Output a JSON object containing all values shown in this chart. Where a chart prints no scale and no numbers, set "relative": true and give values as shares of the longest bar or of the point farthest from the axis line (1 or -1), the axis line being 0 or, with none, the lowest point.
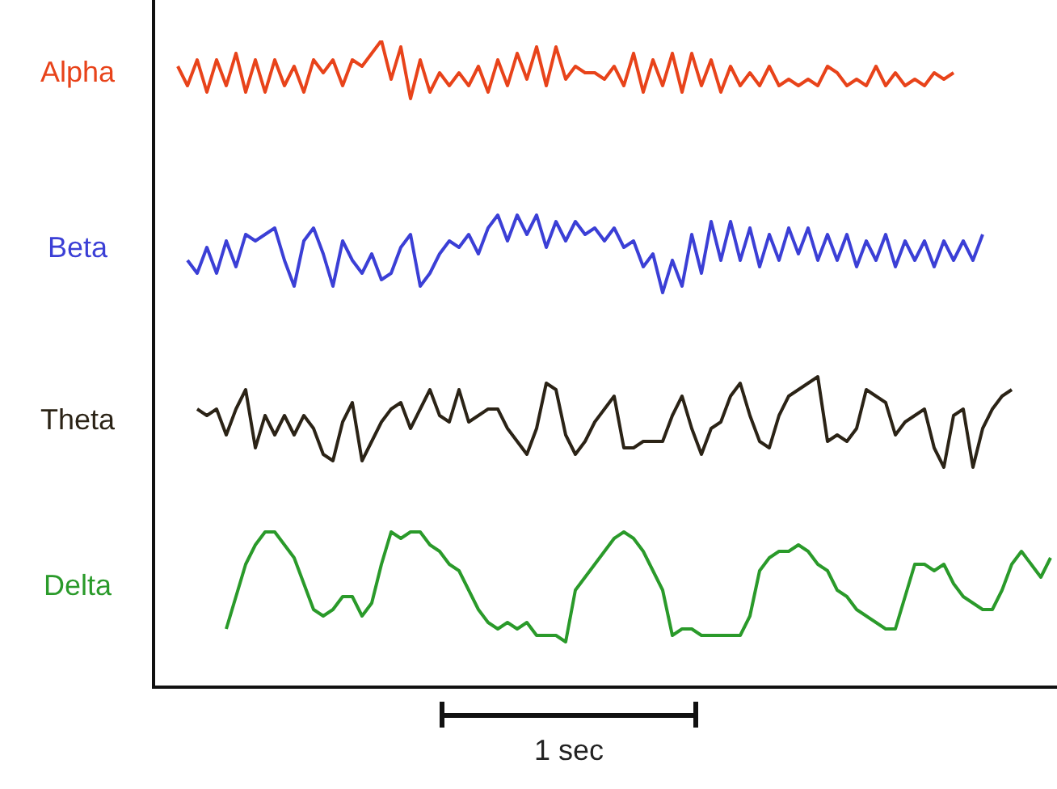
{
  "chart_data": {
    "type": "line",
    "relative": true,
    "categories": [
      null,
      null,
      null,
      null,
      null,
      null,
      null,
      null,
      null,
      null,
      null,
      null,
      null,
      null,
      null,
      null,
      null,
      null,
      null,
      null,
      null,
      null,
      null,
      null,
      null,
      null,
      null,
      null,
      null,
      null,
      null,
      null,
      null,
      null,
      null,
      null,
      null,
      null,
      null,
      null,
      null,
      null,
      null,
      null,
      null,
      null,
      null,
      null,
      null,
      null,
      null,
      null,
      null,
      null,
      null,
      null,
      null,
      null,
      null,
      null,
      null,
      null,
      null,
      null,
      null,
      null,
      null,
      null,
      null,
      null,
      null,
      null,
      null,
      null,
      null,
      null,
      null,
      null,
      null,
      null,
      null,
      null,
      null,
      null,
      null,
      null,
      null,
      null,
      null,
      null,
      null,
      null,
      null
    ],
    "series": [
      {
        "name": "Alpha",
        "color": "#e8431a",
        "values": [
          null,
          null,
          0.96,
          0.93,
          0.97,
          0.92,
          0.97,
          0.93,
          0.98,
          0.92,
          0.97,
          0.92,
          0.97,
          0.93,
          0.96,
          0.92,
          0.97,
          0.95,
          0.97,
          0.93,
          0.97,
          0.96,
          0.98,
          1.0,
          0.94,
          0.99,
          0.91,
          0.97,
          0.92,
          0.95,
          0.93,
          0.95,
          0.93,
          0.96,
          0.92,
          0.97,
          0.93,
          0.98,
          0.94,
          0.99,
          0.93,
          0.99,
          0.94,
          0.96,
          0.95,
          0.95,
          0.94,
          0.96,
          0.93,
          0.98,
          0.92,
          0.97,
          0.93,
          0.98,
          0.92,
          0.98,
          0.93,
          0.97,
          0.92,
          0.96,
          0.93,
          0.95,
          0.93,
          0.96,
          0.93,
          0.94,
          0.93,
          0.94,
          0.93,
          0.96,
          0.95,
          0.93,
          0.94,
          0.93,
          0.96,
          0.93,
          0.95,
          0.93,
          0.94,
          0.93,
          0.95,
          0.94,
          0.95,
          null,
          null,
          null,
          null,
          null,
          null,
          null,
          null,
          null,
          null
        ]
      },
      {
        "name": "Beta",
        "color": "#3b3fd6",
        "values": [
          null,
          null,
          null,
          0.66,
          0.64,
          0.68,
          0.64,
          0.69,
          0.65,
          0.7,
          0.69,
          0.7,
          0.71,
          0.66,
          0.62,
          0.69,
          0.71,
          0.67,
          0.62,
          0.69,
          0.66,
          0.64,
          0.67,
          0.63,
          0.64,
          0.68,
          0.7,
          0.62,
          0.64,
          0.67,
          0.69,
          0.68,
          0.7,
          0.67,
          0.71,
          0.73,
          0.69,
          0.73,
          0.7,
          0.73,
          0.68,
          0.72,
          0.69,
          0.72,
          0.7,
          0.71,
          0.69,
          0.71,
          0.68,
          0.69,
          0.65,
          0.67,
          0.61,
          0.66,
          0.62,
          0.7,
          0.64,
          0.72,
          0.66,
          0.72,
          0.66,
          0.71,
          0.65,
          0.7,
          0.66,
          0.71,
          0.67,
          0.71,
          0.66,
          0.7,
          0.66,
          0.7,
          0.65,
          0.69,
          0.66,
          0.7,
          0.65,
          0.69,
          0.66,
          0.69,
          0.65,
          0.69,
          0.66,
          0.69,
          0.66,
          0.7,
          null,
          null,
          null,
          null,
          null,
          null,
          null
        ]
      },
      {
        "name": "Theta",
        "color": "#2b2316",
        "values": [
          null,
          null,
          null,
          null,
          0.43,
          0.42,
          0.43,
          0.39,
          0.43,
          0.46,
          0.37,
          0.42,
          0.39,
          0.42,
          0.39,
          0.42,
          0.4,
          0.36,
          0.35,
          0.41,
          0.44,
          0.35,
          0.38,
          0.41,
          0.43,
          0.44,
          0.4,
          0.43,
          0.46,
          0.42,
          0.41,
          0.46,
          0.41,
          0.42,
          0.43,
          0.43,
          0.4,
          0.38,
          0.36,
          0.4,
          0.47,
          0.46,
          0.39,
          0.36,
          0.38,
          0.41,
          0.43,
          0.45,
          0.37,
          0.37,
          0.38,
          0.38,
          0.38,
          0.42,
          0.45,
          0.4,
          0.36,
          0.4,
          0.41,
          0.45,
          0.47,
          0.42,
          0.38,
          0.37,
          0.42,
          0.45,
          0.46,
          0.47,
          0.48,
          0.38,
          0.39,
          0.38,
          0.4,
          0.46,
          0.45,
          0.44,
          0.39,
          0.41,
          0.42,
          0.43,
          0.37,
          0.34,
          0.42,
          0.43,
          0.34,
          0.4,
          0.43,
          0.45,
          0.46,
          null,
          null,
          null,
          null
        ]
      },
      {
        "name": "Delta",
        "color": "#2a9a2a",
        "values": [
          null,
          null,
          null,
          null,
          null,
          null,
          null,
          0.09,
          0.14,
          0.19,
          0.22,
          0.24,
          0.24,
          0.22,
          0.2,
          0.16,
          0.12,
          0.11,
          0.12,
          0.14,
          0.14,
          0.11,
          0.13,
          0.19,
          0.24,
          0.23,
          0.24,
          0.24,
          0.22,
          0.21,
          0.19,
          0.18,
          0.15,
          0.12,
          0.1,
          0.09,
          0.1,
          0.09,
          0.1,
          0.08,
          0.08,
          0.08,
          0.07,
          0.15,
          0.17,
          0.19,
          0.21,
          0.23,
          0.24,
          0.23,
          0.21,
          0.18,
          0.15,
          0.08,
          0.09,
          0.09,
          0.08,
          0.08,
          0.08,
          0.08,
          0.08,
          0.11,
          0.18,
          0.2,
          0.21,
          0.21,
          0.22,
          0.21,
          0.19,
          0.18,
          0.15,
          0.14,
          0.12,
          0.11,
          0.1,
          0.09,
          0.09,
          0.14,
          0.19,
          0.19,
          0.18,
          0.19,
          0.16,
          0.14,
          0.13,
          0.12,
          0.12,
          0.15,
          0.19,
          0.21,
          0.19,
          0.17,
          0.2
        ]
      }
    ],
    "annotations": [
      "1 sec"
    ]
  }
}
